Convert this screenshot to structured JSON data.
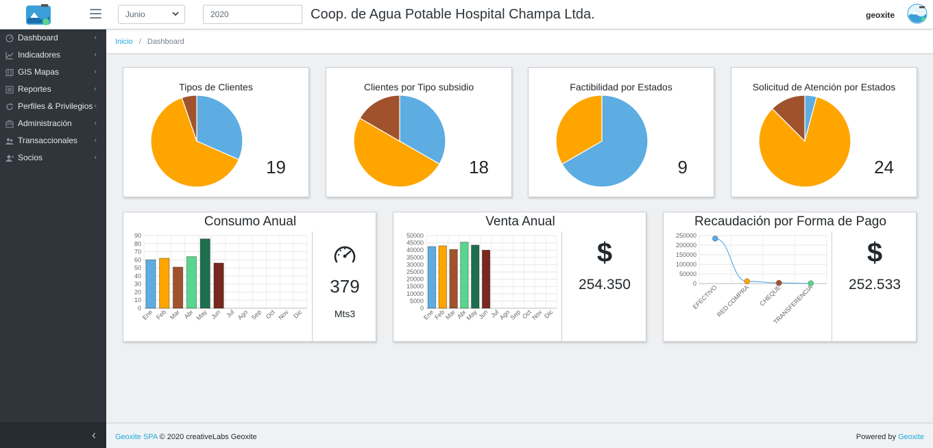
{
  "header": {
    "month_value": "Junio",
    "year_value": "2020",
    "title": "Coop. de Agua Potable Hospital Champa Ltda.",
    "user": "geoxite"
  },
  "sidebar": {
    "items": [
      {
        "label": "Dashboard",
        "icon": "speedometer-icon"
      },
      {
        "label": "Indicadores",
        "icon": "chart-icon"
      },
      {
        "label": "GIS Mapas",
        "icon": "map-icon"
      },
      {
        "label": "Reportes",
        "icon": "list-icon"
      },
      {
        "label": "Perfiles & Privilegios",
        "icon": "refresh-icon"
      },
      {
        "label": "Administración",
        "icon": "briefcase-icon"
      },
      {
        "label": "Transaccionales",
        "icon": "users-icon"
      },
      {
        "label": "Socios",
        "icon": "user-icon"
      }
    ],
    "toggle": "‹"
  },
  "breadcrumb": {
    "home": "Inicio",
    "separator": "/",
    "current": "Dashboard"
  },
  "colors": {
    "blue": "#5dade2",
    "orange": "#ffa500",
    "brown": "#a0522d",
    "green": "#58d68d",
    "darkgreen": "#1e6f50",
    "darkred": "#78281f"
  },
  "pies": [
    {
      "title": "Tipos de Clientes",
      "count": "19",
      "slices": [
        {
          "color": "#5dade2",
          "value": 6
        },
        {
          "color": "#ffa500",
          "value": 12
        },
        {
          "color": "#a0522d",
          "value": 1
        }
      ]
    },
    {
      "title": "Clientes por Tipo subsidio",
      "count": "18",
      "slices": [
        {
          "color": "#5dade2",
          "value": 6
        },
        {
          "color": "#ffa500",
          "value": 9
        },
        {
          "color": "#a0522d",
          "value": 3
        }
      ]
    },
    {
      "title": "Factibilidad por Estados",
      "count": "9",
      "slices": [
        {
          "color": "#5dade2",
          "value": 6
        },
        {
          "color": "#ffa500",
          "value": 3
        }
      ]
    },
    {
      "title": "Solicitud de Atención por Estados",
      "count": "24",
      "slices": [
        {
          "color": "#5dade2",
          "value": 1
        },
        {
          "color": "#ffa500",
          "value": 20
        },
        {
          "color": "#a0522d",
          "value": 3
        }
      ]
    }
  ],
  "consumo": {
    "title": "Consumo Anual",
    "total": "379",
    "unit": "Mts3",
    "gauge_icon": "speedometer-icon"
  },
  "venta": {
    "title": "Venta Anual",
    "currency": "$",
    "total": "254.350"
  },
  "recaudacion": {
    "title": "Recaudación por Forma de Pago",
    "currency": "$",
    "total": "252.533"
  },
  "chart_data": [
    {
      "type": "bar",
      "title": "Consumo Anual",
      "categories": [
        "Ene",
        "Feb",
        "Mar",
        "Abr",
        "May",
        "Jun",
        "Jul",
        "Ago",
        "Sep",
        "Oct",
        "Nov",
        "Dic"
      ],
      "values": [
        60,
        62,
        51,
        64,
        86,
        56,
        null,
        null,
        null,
        null,
        null,
        null
      ],
      "colors": [
        "#5dade2",
        "#ffa500",
        "#a0522d",
        "#58d68d",
        "#1e6f50",
        "#78281f"
      ],
      "ylim": [
        0,
        90
      ],
      "yticks": [
        0,
        10,
        20,
        30,
        40,
        50,
        60,
        70,
        80,
        90
      ]
    },
    {
      "type": "bar",
      "title": "Venta Anual",
      "categories": [
        "Ene",
        "Feb",
        "Mar",
        "Abr",
        "May",
        "Jun",
        "Jul",
        "Ago",
        "Sep",
        "Oct",
        "Nov",
        "Dic"
      ],
      "values": [
        42500,
        43000,
        40500,
        45500,
        43500,
        40000,
        null,
        null,
        null,
        null,
        null,
        null
      ],
      "colors": [
        "#5dade2",
        "#ffa500",
        "#a0522d",
        "#58d68d",
        "#1e6f50",
        "#78281f"
      ],
      "ylim": [
        0,
        50000
      ],
      "yticks": [
        0,
        5000,
        10000,
        15000,
        20000,
        25000,
        30000,
        35000,
        40000,
        45000,
        50000
      ]
    },
    {
      "type": "line",
      "title": "Recaudación por Forma de Pago",
      "categories": [
        "EFECTIVO",
        "RED COMPRA",
        "CHEQUE",
        "TRANSFERENCIA"
      ],
      "values": [
        235000,
        12000,
        3500,
        1500
      ],
      "colors": [
        "#5dade2",
        "#ffa500",
        "#a0522d",
        "#58d68d"
      ],
      "ylim": [
        0,
        250000
      ],
      "yticks": [
        0,
        50000,
        100000,
        150000,
        200000,
        250000
      ]
    }
  ],
  "footer": {
    "company": "Geoxite SPA",
    "copyright": "© 2020 creativeLabs Geoxite",
    "powered": "Powered by",
    "powered_link": "Geoxite"
  }
}
